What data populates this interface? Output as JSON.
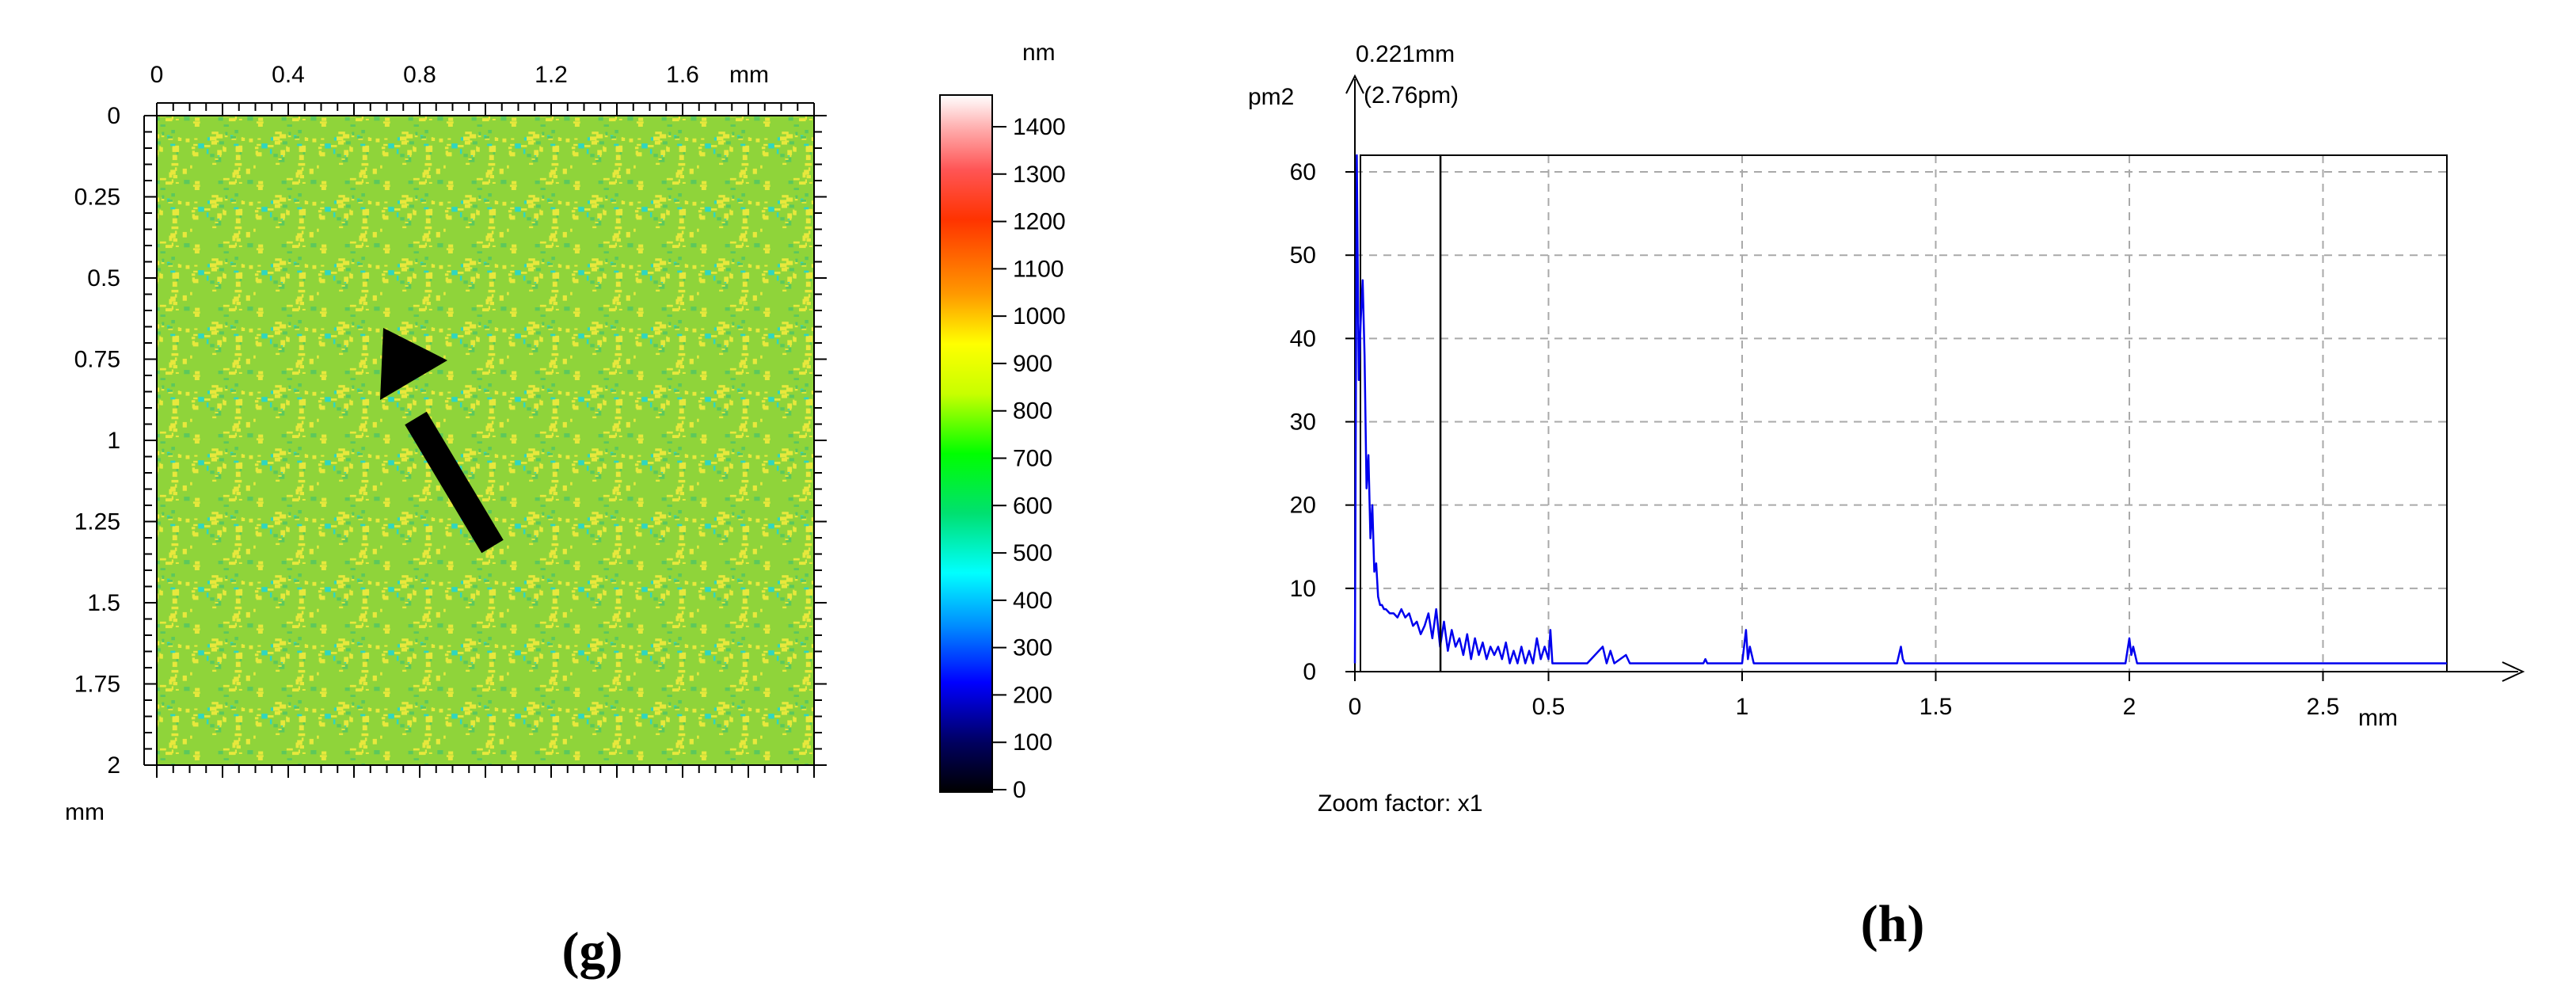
{
  "panels": {
    "g": {
      "label": "(g)"
    },
    "h": {
      "label": "(h)"
    }
  },
  "colors": {
    "map_base": "#8fd43a",
    "map_yellow": "#e8e83c",
    "map_cyan": "#2fd6c0",
    "psd_line": "#0000ee",
    "grid": "#a9a9a9",
    "arrow": "#000000"
  },
  "chart_data": [
    {
      "type": "heatmap",
      "panel": "g",
      "x_unit": "mm",
      "y_unit": "mm",
      "x_ticks": [
        "0",
        "0.4",
        "0.8",
        "1.2",
        "1.6"
      ],
      "y_ticks": [
        "0",
        "0.25",
        "0.5",
        "0.75",
        "1",
        "1.25",
        "1.5",
        "1.75",
        "2"
      ],
      "xlim": [
        0,
        2.0
      ],
      "ylim": [
        0,
        2.0
      ],
      "annotation": "arrow",
      "colorbar": {
        "unit": "nm",
        "range": [
          0,
          1400
        ],
        "ticks": [
          "0",
          "100",
          "200",
          "300",
          "400",
          "500",
          "600",
          "700",
          "800",
          "900",
          "1000",
          "1100",
          "1200",
          "1300",
          "1400"
        ],
        "stops": [
          {
            "v": 0,
            "c": "#000000"
          },
          {
            "v": 100,
            "c": "#000060"
          },
          {
            "v": 220,
            "c": "#0000ff"
          },
          {
            "v": 330,
            "c": "#0088ff"
          },
          {
            "v": 440,
            "c": "#00ffff"
          },
          {
            "v": 560,
            "c": "#00e070"
          },
          {
            "v": 680,
            "c": "#00ff00"
          },
          {
            "v": 800,
            "c": "#c8ff00"
          },
          {
            "v": 900,
            "c": "#ffff00"
          },
          {
            "v": 1000,
            "c": "#ff9900"
          },
          {
            "v": 1150,
            "c": "#ff3300"
          },
          {
            "v": 1250,
            "c": "#ff5555"
          },
          {
            "v": 1330,
            "c": "#ffaaaa"
          },
          {
            "v": 1400,
            "c": "#ffffff"
          }
        ]
      }
    },
    {
      "type": "line",
      "panel": "h",
      "ylabel": "pm2",
      "x_unit": "mm",
      "xlim": [
        0,
        2.82
      ],
      "ylim": [
        0,
        62
      ],
      "x_ticks": [
        "0",
        "0.5",
        "1",
        "1.5",
        "2",
        "2.5"
      ],
      "y_ticks": [
        "0",
        "10",
        "20",
        "30",
        "40",
        "50",
        "60"
      ],
      "grid": true,
      "cursor": {
        "x": 0.221,
        "label_line1": "0.221mm",
        "label_line2": "(2.76pm)"
      },
      "footer": "Zoom factor: x1",
      "series": [
        {
          "x": [
            0.0,
            0.005,
            0.01,
            0.015,
            0.02,
            0.025,
            0.03,
            0.035,
            0.04,
            0.045,
            0.05,
            0.055,
            0.06,
            0.065,
            0.07,
            0.075,
            0.08,
            0.09,
            0.1,
            0.11,
            0.12,
            0.13,
            0.14,
            0.15,
            0.16,
            0.17,
            0.18,
            0.19,
            0.2,
            0.21,
            0.22,
            0.23,
            0.24,
            0.25,
            0.26,
            0.27,
            0.28,
            0.29,
            0.3,
            0.31,
            0.32,
            0.33,
            0.34,
            0.35,
            0.36,
            0.37,
            0.38,
            0.39,
            0.4,
            0.41,
            0.42,
            0.43,
            0.44,
            0.45,
            0.46,
            0.47,
            0.48,
            0.49,
            0.5,
            0.505,
            0.51,
            0.52,
            0.55,
            0.6,
            0.64,
            0.65,
            0.66,
            0.67,
            0.7,
            0.71,
            0.72,
            0.75,
            0.8,
            0.85,
            0.9,
            0.905,
            0.91,
            0.95,
            1.0,
            1.01,
            1.015,
            1.02,
            1.03,
            1.1,
            1.2,
            1.3,
            1.4,
            1.41,
            1.415,
            1.42,
            1.5,
            1.6,
            1.7,
            1.8,
            1.9,
            1.99,
            2.0,
            2.005,
            2.01,
            2.02,
            2.1,
            2.2,
            2.3,
            2.4,
            2.5,
            2.6,
            2.7,
            2.82
          ],
          "y": [
            1,
            62,
            35,
            42,
            47,
            38,
            22,
            26,
            16,
            20,
            12,
            13,
            9,
            8,
            8,
            7.5,
            7.5,
            7,
            7,
            6.5,
            7.5,
            6.5,
            7,
            5.5,
            6,
            4.5,
            5.5,
            7,
            4,
            7.5,
            3,
            6,
            2.5,
            5,
            3,
            4,
            2,
            4.5,
            1.5,
            4,
            2,
            3.5,
            1.5,
            3,
            2,
            3,
            1.5,
            3.5,
            1,
            2.5,
            1,
            3,
            1,
            2.5,
            1,
            4,
            1.5,
            3,
            1.5,
            5,
            1,
            1,
            1,
            1,
            3,
            1,
            2.5,
            1,
            2,
            1,
            1,
            1,
            1,
            1,
            1,
            1.5,
            1,
            1,
            1,
            5,
            1.5,
            3,
            1,
            1,
            1,
            1,
            1,
            3,
            1.5,
            1,
            1,
            1,
            1,
            1,
            1,
            1,
            4,
            2,
            3,
            1,
            1,
            1,
            1,
            1,
            1,
            1,
            1,
            1
          ]
        }
      ]
    }
  ]
}
